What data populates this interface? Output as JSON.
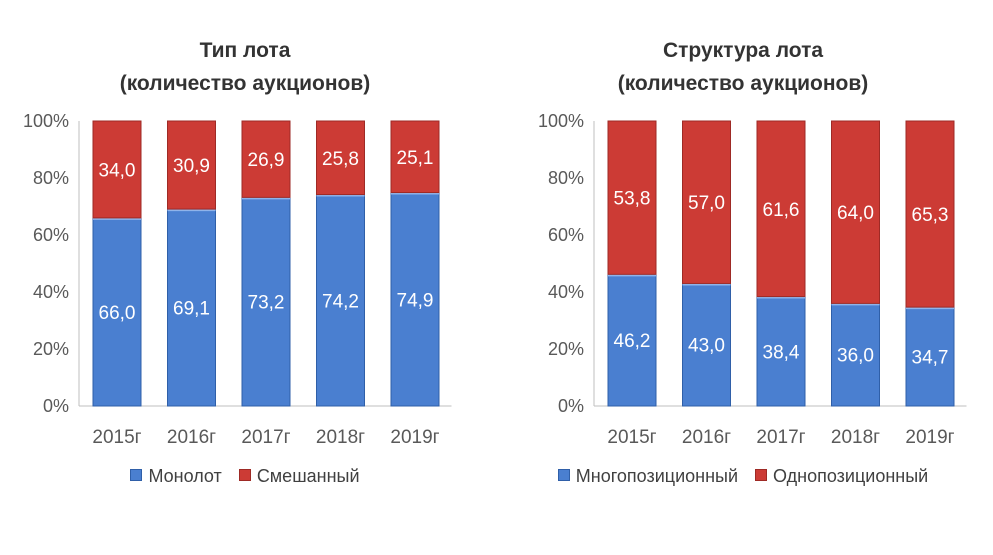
{
  "charts": [
    {
      "title_line1": "Тип лота",
      "title_line2": "(количество аукционов)",
      "legend": [
        "Монолот",
        "Смешанный"
      ]
    },
    {
      "title_line1": "Структура лота",
      "title_line2": "(количество аукционов)",
      "legend": [
        "Многопозиционный",
        "Однопозиционный"
      ]
    }
  ],
  "colors": {
    "blue": "#4a7fd0",
    "red": "#cc3b35"
  },
  "chart_data": [
    {
      "type": "bar",
      "stacked": true,
      "percent": true,
      "title": "Тип лота (количество аукционов)",
      "categories": [
        "2015г",
        "2016г",
        "2017г",
        "2018г",
        "2019г"
      ],
      "series": [
        {
          "name": "Монолот",
          "values": [
            66.0,
            69.1,
            73.2,
            74.2,
            74.9
          ],
          "labels": [
            "66,0",
            "69,1",
            "73,2",
            "74,2",
            "74,9"
          ]
        },
        {
          "name": "Смешанный",
          "values": [
            34.0,
            30.9,
            26.9,
            25.8,
            25.1
          ],
          "labels": [
            "34,0",
            "30,9",
            "26,9",
            "25,8",
            "25,1"
          ]
        }
      ],
      "yticks": [
        "0%",
        "20%",
        "40%",
        "60%",
        "80%",
        "100%"
      ],
      "ylim": [
        0,
        100
      ],
      "legend_position": "bottom",
      "grid": false
    },
    {
      "type": "bar",
      "stacked": true,
      "percent": true,
      "title": "Структура лота (количество аукционов)",
      "categories": [
        "2015г",
        "2016г",
        "2017г",
        "2018г",
        "2019г"
      ],
      "series": [
        {
          "name": "Многопозиционный",
          "values": [
            46.2,
            43.0,
            38.4,
            36.0,
            34.7
          ],
          "labels": [
            "46,2",
            "43,0",
            "38,4",
            "36,0",
            "34,7"
          ]
        },
        {
          "name": "Однопозиционный",
          "values": [
            53.8,
            57.0,
            61.6,
            64.0,
            65.3
          ],
          "labels": [
            "53,8",
            "57,0",
            "61,6",
            "64,0",
            "65,3"
          ]
        }
      ],
      "yticks": [
        "0%",
        "20%",
        "40%",
        "60%",
        "80%",
        "100%"
      ],
      "ylim": [
        0,
        100
      ],
      "legend_position": "bottom",
      "grid": false
    }
  ]
}
